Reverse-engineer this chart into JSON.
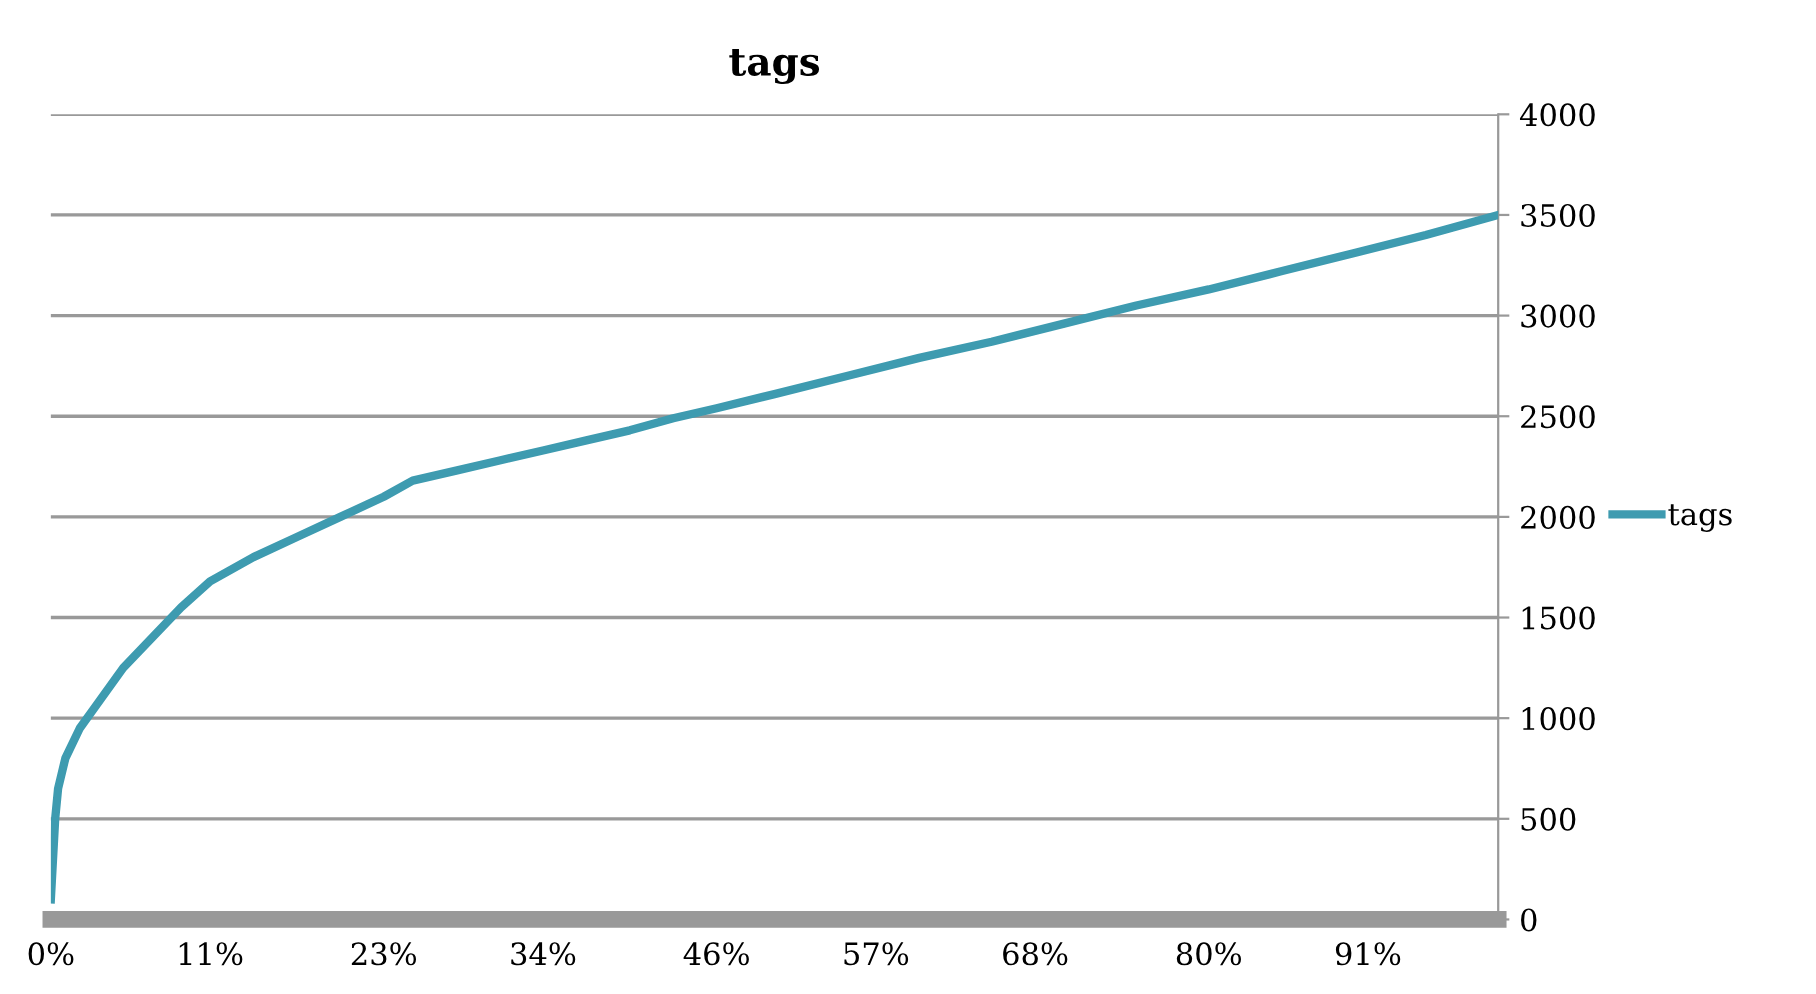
{
  "chart_data": {
    "type": "line",
    "title": "tags",
    "series": [
      {
        "name": "tags",
        "color": "#3e9bb0",
        "x": [
          0,
          0.3,
          0.5,
          1,
          2,
          3,
          5,
          7,
          9,
          11,
          14,
          17,
          20,
          23,
          25,
          28,
          31,
          34,
          37,
          40,
          43,
          46,
          50,
          55,
          60,
          65,
          70,
          75,
          80,
          85,
          90,
          95,
          100
        ],
        "values": [
          100,
          500,
          650,
          800,
          950,
          1050,
          1250,
          1400,
          1550,
          1680,
          1800,
          1900,
          2000,
          2100,
          2180,
          2230,
          2280,
          2330,
          2380,
          2430,
          2490,
          2540,
          2610,
          2700,
          2790,
          2870,
          2960,
          3050,
          3130,
          3220,
          3310,
          3400,
          3500
        ]
      }
    ],
    "xlim": [
      0,
      100
    ],
    "xticks": [
      {
        "value": 0,
        "label": "0%"
      },
      {
        "value": 11,
        "label": "11%"
      },
      {
        "value": 23,
        "label": "23%"
      },
      {
        "value": 34,
        "label": "34%"
      },
      {
        "value": 46,
        "label": "46%"
      },
      {
        "value": 57,
        "label": "57%"
      },
      {
        "value": 68,
        "label": "68%"
      },
      {
        "value": 80,
        "label": "80%"
      },
      {
        "value": 91,
        "label": "91%"
      }
    ],
    "ylim": [
      0,
      4000
    ],
    "yticks": [
      0,
      500,
      1000,
      1500,
      2000,
      2500,
      3000,
      3500,
      4000
    ],
    "grid": "y",
    "legend": "right",
    "marker": "none",
    "line_style": "solid"
  }
}
